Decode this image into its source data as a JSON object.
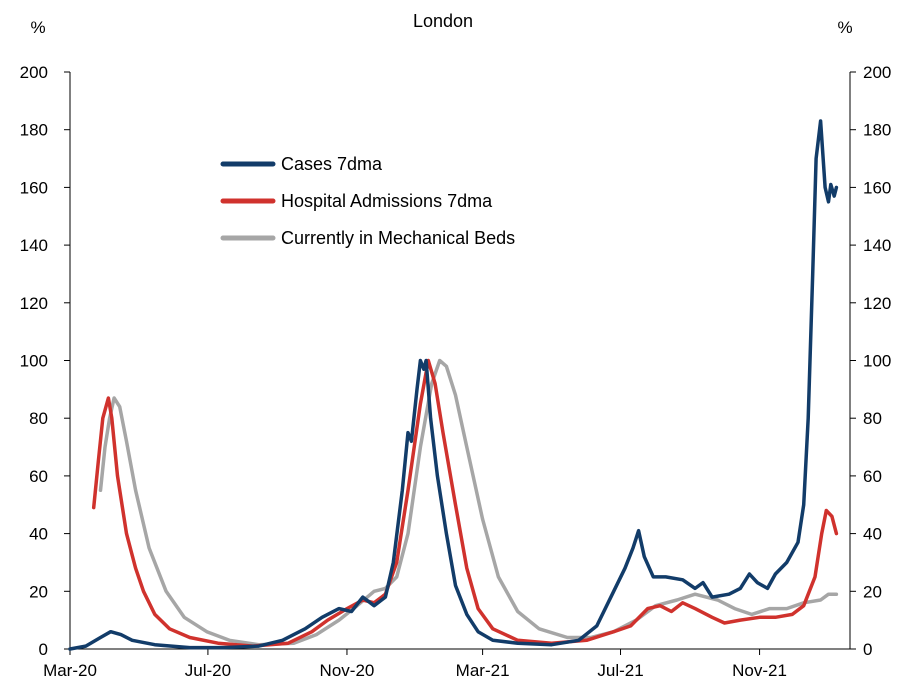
{
  "chart_data": {
    "type": "line",
    "title": "London",
    "ylabel_left": "%",
    "ylabel_right": "%",
    "ylim": [
      0,
      200
    ],
    "yticks": [
      0,
      20,
      40,
      60,
      80,
      100,
      120,
      140,
      160,
      180,
      200
    ],
    "xlim": [
      "2020-03-01",
      "2022-01-20"
    ],
    "xticks": [
      {
        "label": "Mar-20",
        "date": "2020-03-01"
      },
      {
        "label": "Jul-20",
        "date": "2020-07-01"
      },
      {
        "label": "Nov-20",
        "date": "2020-11-01"
      },
      {
        "label": "Mar-21",
        "date": "2021-03-01"
      },
      {
        "label": "Jul-21",
        "date": "2021-07-01"
      },
      {
        "label": "Nov-21",
        "date": "2021-11-01"
      }
    ],
    "grid": false,
    "legend_position": "top-left",
    "series": [
      {
        "name": "Cases 7dma",
        "color": "#123c69",
        "points": [
          [
            "2020-03-01",
            0
          ],
          [
            "2020-03-15",
            1
          ],
          [
            "2020-03-28",
            4
          ],
          [
            "2020-04-06",
            6
          ],
          [
            "2020-04-15",
            5
          ],
          [
            "2020-04-25",
            3
          ],
          [
            "2020-05-15",
            1.5
          ],
          [
            "2020-06-15",
            0.5
          ],
          [
            "2020-07-15",
            0.5
          ],
          [
            "2020-08-15",
            1
          ],
          [
            "2020-09-05",
            3
          ],
          [
            "2020-09-25",
            7
          ],
          [
            "2020-10-10",
            11
          ],
          [
            "2020-10-25",
            14
          ],
          [
            "2020-11-05",
            13
          ],
          [
            "2020-11-15",
            18
          ],
          [
            "2020-11-25",
            15
          ],
          [
            "2020-12-05",
            18
          ],
          [
            "2020-12-12",
            30
          ],
          [
            "2020-12-20",
            55
          ],
          [
            "2020-12-25",
            75
          ],
          [
            "2020-12-28",
            72
          ],
          [
            "2021-01-02",
            90
          ],
          [
            "2021-01-05",
            100
          ],
          [
            "2021-01-08",
            97
          ],
          [
            "2021-01-10",
            100
          ],
          [
            "2021-01-14",
            80
          ],
          [
            "2021-01-20",
            60
          ],
          [
            "2021-01-28",
            40
          ],
          [
            "2021-02-05",
            22
          ],
          [
            "2021-02-15",
            12
          ],
          [
            "2021-02-25",
            6
          ],
          [
            "2021-03-10",
            3
          ],
          [
            "2021-04-01",
            2
          ],
          [
            "2021-05-01",
            1.5
          ],
          [
            "2021-05-25",
            3
          ],
          [
            "2021-06-10",
            8
          ],
          [
            "2021-06-25",
            20
          ],
          [
            "2021-07-05",
            28
          ],
          [
            "2021-07-12",
            35
          ],
          [
            "2021-07-17",
            41
          ],
          [
            "2021-07-22",
            32
          ],
          [
            "2021-07-30",
            25
          ],
          [
            "2021-08-10",
            25
          ],
          [
            "2021-08-25",
            24
          ],
          [
            "2021-09-05",
            21
          ],
          [
            "2021-09-12",
            23
          ],
          [
            "2021-09-20",
            18
          ],
          [
            "2021-10-05",
            19
          ],
          [
            "2021-10-15",
            21
          ],
          [
            "2021-10-23",
            26
          ],
          [
            "2021-10-30",
            23
          ],
          [
            "2021-11-08",
            21
          ],
          [
            "2021-11-15",
            26
          ],
          [
            "2021-11-25",
            30
          ],
          [
            "2021-12-05",
            37
          ],
          [
            "2021-12-10",
            50
          ],
          [
            "2021-12-14",
            80
          ],
          [
            "2021-12-18",
            130
          ],
          [
            "2021-12-21",
            170
          ],
          [
            "2021-12-25",
            183
          ],
          [
            "2021-12-29",
            160
          ],
          [
            "2022-01-01",
            155
          ],
          [
            "2022-01-03",
            161
          ],
          [
            "2022-01-06",
            157
          ],
          [
            "2022-01-08",
            160
          ]
        ]
      },
      {
        "name": "Hospital Admissions 7dma",
        "color": "#d0322d",
        "points": [
          [
            "2020-03-22",
            49
          ],
          [
            "2020-03-26",
            65
          ],
          [
            "2020-03-30",
            80
          ],
          [
            "2020-04-04",
            87
          ],
          [
            "2020-04-07",
            80
          ],
          [
            "2020-04-12",
            60
          ],
          [
            "2020-04-20",
            40
          ],
          [
            "2020-04-28",
            28
          ],
          [
            "2020-05-05",
            20
          ],
          [
            "2020-05-15",
            12
          ],
          [
            "2020-05-28",
            7
          ],
          [
            "2020-06-15",
            4
          ],
          [
            "2020-07-10",
            2
          ],
          [
            "2020-08-10",
            1
          ],
          [
            "2020-09-10",
            2
          ],
          [
            "2020-10-01",
            6
          ],
          [
            "2020-10-15",
            10
          ],
          [
            "2020-11-01",
            14
          ],
          [
            "2020-11-15",
            17
          ],
          [
            "2020-11-25",
            16
          ],
          [
            "2020-12-05",
            19
          ],
          [
            "2020-12-15",
            30
          ],
          [
            "2020-12-25",
            55
          ],
          [
            "2021-01-05",
            85
          ],
          [
            "2021-01-12",
            100
          ],
          [
            "2021-01-18",
            92
          ],
          [
            "2021-01-25",
            75
          ],
          [
            "2021-02-05",
            50
          ],
          [
            "2021-02-15",
            28
          ],
          [
            "2021-02-25",
            14
          ],
          [
            "2021-03-10",
            7
          ],
          [
            "2021-04-01",
            3
          ],
          [
            "2021-05-01",
            2
          ],
          [
            "2021-06-01",
            3
          ],
          [
            "2021-06-25",
            6
          ],
          [
            "2021-07-10",
            8
          ],
          [
            "2021-07-25",
            14
          ],
          [
            "2021-08-05",
            15
          ],
          [
            "2021-08-15",
            13
          ],
          [
            "2021-08-25",
            16
          ],
          [
            "2021-09-05",
            14
          ],
          [
            "2021-09-20",
            11
          ],
          [
            "2021-10-01",
            9
          ],
          [
            "2021-10-15",
            10
          ],
          [
            "2021-11-01",
            11
          ],
          [
            "2021-11-15",
            11
          ],
          [
            "2021-11-30",
            12
          ],
          [
            "2021-12-10",
            15
          ],
          [
            "2021-12-20",
            25
          ],
          [
            "2021-12-26",
            40
          ],
          [
            "2021-12-30",
            48
          ],
          [
            "2022-01-04",
            46
          ],
          [
            "2022-01-08",
            40
          ]
        ]
      },
      {
        "name": "Currently in Mechanical Beds",
        "color": "#a6a6a6",
        "points": [
          [
            "2020-03-28",
            55
          ],
          [
            "2020-04-01",
            70
          ],
          [
            "2020-04-05",
            80
          ],
          [
            "2020-04-09",
            87
          ],
          [
            "2020-04-14",
            84
          ],
          [
            "2020-04-20",
            72
          ],
          [
            "2020-04-28",
            55
          ],
          [
            "2020-05-10",
            35
          ],
          [
            "2020-05-25",
            20
          ],
          [
            "2020-06-10",
            11
          ],
          [
            "2020-06-30",
            6
          ],
          [
            "2020-07-20",
            3
          ],
          [
            "2020-08-15",
            1.5
          ],
          [
            "2020-09-15",
            2
          ],
          [
            "2020-10-05",
            5
          ],
          [
            "2020-10-25",
            10
          ],
          [
            "2020-11-10",
            15
          ],
          [
            "2020-11-25",
            20
          ],
          [
            "2020-12-05",
            21
          ],
          [
            "2020-12-15",
            25
          ],
          [
            "2020-12-25",
            40
          ],
          [
            "2021-01-05",
            70
          ],
          [
            "2021-01-15",
            92
          ],
          [
            "2021-01-22",
            100
          ],
          [
            "2021-01-28",
            98
          ],
          [
            "2021-02-05",
            88
          ],
          [
            "2021-02-15",
            70
          ],
          [
            "2021-03-01",
            45
          ],
          [
            "2021-03-15",
            25
          ],
          [
            "2021-04-01",
            13
          ],
          [
            "2021-04-20",
            7
          ],
          [
            "2021-05-15",
            4
          ],
          [
            "2021-06-05",
            4
          ],
          [
            "2021-06-25",
            6
          ],
          [
            "2021-07-15",
            10
          ],
          [
            "2021-08-01",
            15
          ],
          [
            "2021-08-20",
            17
          ],
          [
            "2021-09-05",
            19
          ],
          [
            "2021-09-25",
            17
          ],
          [
            "2021-10-10",
            14
          ],
          [
            "2021-10-25",
            12
          ],
          [
            "2021-11-10",
            14
          ],
          [
            "2021-11-25",
            14
          ],
          [
            "2021-12-10",
            16
          ],
          [
            "2021-12-25",
            17
          ],
          [
            "2022-01-01",
            19
          ],
          [
            "2022-01-08",
            19
          ]
        ]
      }
    ]
  }
}
